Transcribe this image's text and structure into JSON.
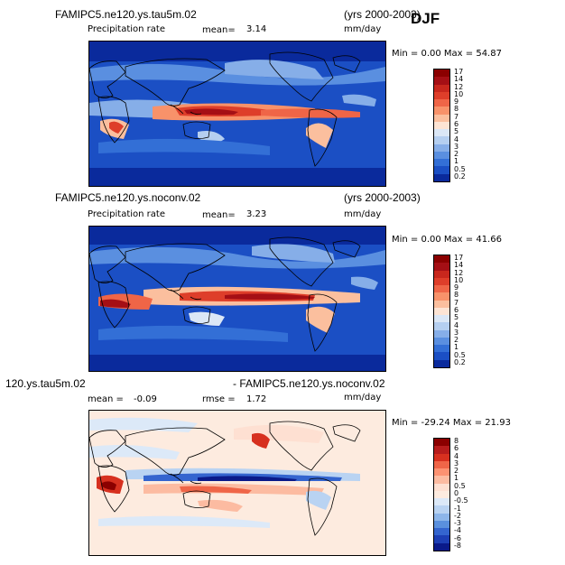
{
  "season": "DJF",
  "panels": [
    {
      "case": "FAMIPC5.ne120.ys.tau5m.02",
      "years": "(yrs 2000-2003)",
      "variable": "Precipitation rate",
      "stat_label": "mean=",
      "stat_value": "3.14",
      "units": "mm/day",
      "minmax": "Min =    0.00 Max =   54.87",
      "colorbar": [
        "17",
        "14",
        "12",
        "10",
        "9",
        "8",
        "7",
        "6",
        "5",
        "4",
        "3",
        "2",
        "1",
        "0.5",
        "0.2"
      ],
      "palette": "precip"
    },
    {
      "case": "FAMIPC5.ne120.ys.noconv.02",
      "years": "(yrs 2000-2003)",
      "variable": "Precipitation rate",
      "stat_label": "mean=",
      "stat_value": "3.23",
      "units": "mm/day",
      "minmax": "Min =    0.00 Max =   41.66",
      "colorbar": [
        "17",
        "14",
        "12",
        "10",
        "9",
        "8",
        "7",
        "6",
        "5",
        "4",
        "3",
        "2",
        "1",
        "0.5",
        "0.2"
      ],
      "palette": "precip"
    },
    {
      "case_left": "120.ys.tau5m.02",
      "case_right": "- FAMIPC5.ne120.ys.noconv.02",
      "stat_label": "mean =",
      "stat_value": "-0.09",
      "rmse_label": "rmse =",
      "rmse_value": "1.72",
      "units": "mm/day",
      "minmax": "Min = -29.24 Max =   21.93",
      "colorbar": [
        "8",
        "6",
        "4",
        "3",
        "2",
        "1",
        "0.5",
        "0",
        "-0.5",
        "-1",
        "-2",
        "-3",
        "-4",
        "-6",
        "-8"
      ],
      "palette": "diff"
    }
  ],
  "colors": {
    "precip": [
      "#8b0000",
      "#a50f15",
      "#c8271d",
      "#de3e2a",
      "#ef6547",
      "#f8926a",
      "#fbbf9e",
      "#fde4d4",
      "#dbe7f6",
      "#b5cff0",
      "#86aee8",
      "#5a8fe0",
      "#336fd6",
      "#1b4fc4",
      "#0a2a9c"
    ],
    "diff": [
      "#8b0000",
      "#b71c1c",
      "#d7301f",
      "#ef6548",
      "#fc9272",
      "#fcbba1",
      "#fee0d2",
      "#fdebdf",
      "#dce9f8",
      "#b9d3f2",
      "#8db6ea",
      "#5a90de",
      "#3465cf",
      "#1d3fb5",
      "#0a1a8a"
    ]
  }
}
